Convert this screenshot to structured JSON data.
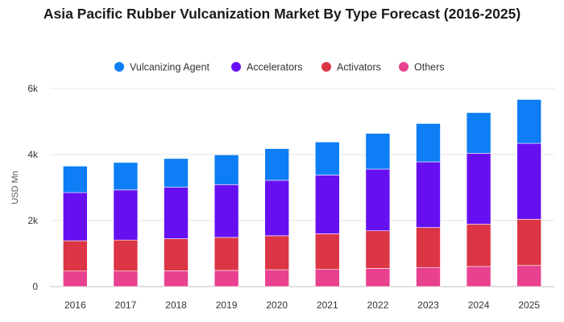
{
  "chart_data": {
    "type": "bar",
    "stacked": true,
    "title": "Asia Pacific Rubber Vulcanization Market By Type Forecast (2016-2025)",
    "ylabel": "USD Mn",
    "xlabel": "",
    "ylim": [
      0,
      6000
    ],
    "yticks": [
      0,
      2000,
      4000,
      6000
    ],
    "ytick_labels": [
      "0",
      "2k",
      "4k",
      "6k"
    ],
    "grid": true,
    "legend_position": "top",
    "categories": [
      "2016",
      "2017",
      "2018",
      "2019",
      "2020",
      "2021",
      "2022",
      "2023",
      "2024",
      "2025"
    ],
    "series": [
      {
        "name": "Others",
        "color": "#e8418f",
        "values": [
          470,
          470,
          480,
          490,
          510,
          520,
          550,
          580,
          610,
          640
        ]
      },
      {
        "name": "Activators",
        "color": "#dc3545",
        "values": [
          920,
          940,
          970,
          1000,
          1030,
          1080,
          1140,
          1210,
          1280,
          1400
        ]
      },
      {
        "name": "Accelerators",
        "color": "#6610f2",
        "values": [
          1460,
          1520,
          1560,
          1600,
          1680,
          1780,
          1870,
          1990,
          2150,
          2300
        ]
      },
      {
        "name": "Vulcanizing Agent",
        "color": "#0d7ef5",
        "values": [
          800,
          830,
          870,
          900,
          960,
          1000,
          1080,
          1160,
          1230,
          1330
        ]
      }
    ],
    "legend_order": [
      "Vulcanizing Agent",
      "Accelerators",
      "Activators",
      "Others"
    ]
  }
}
